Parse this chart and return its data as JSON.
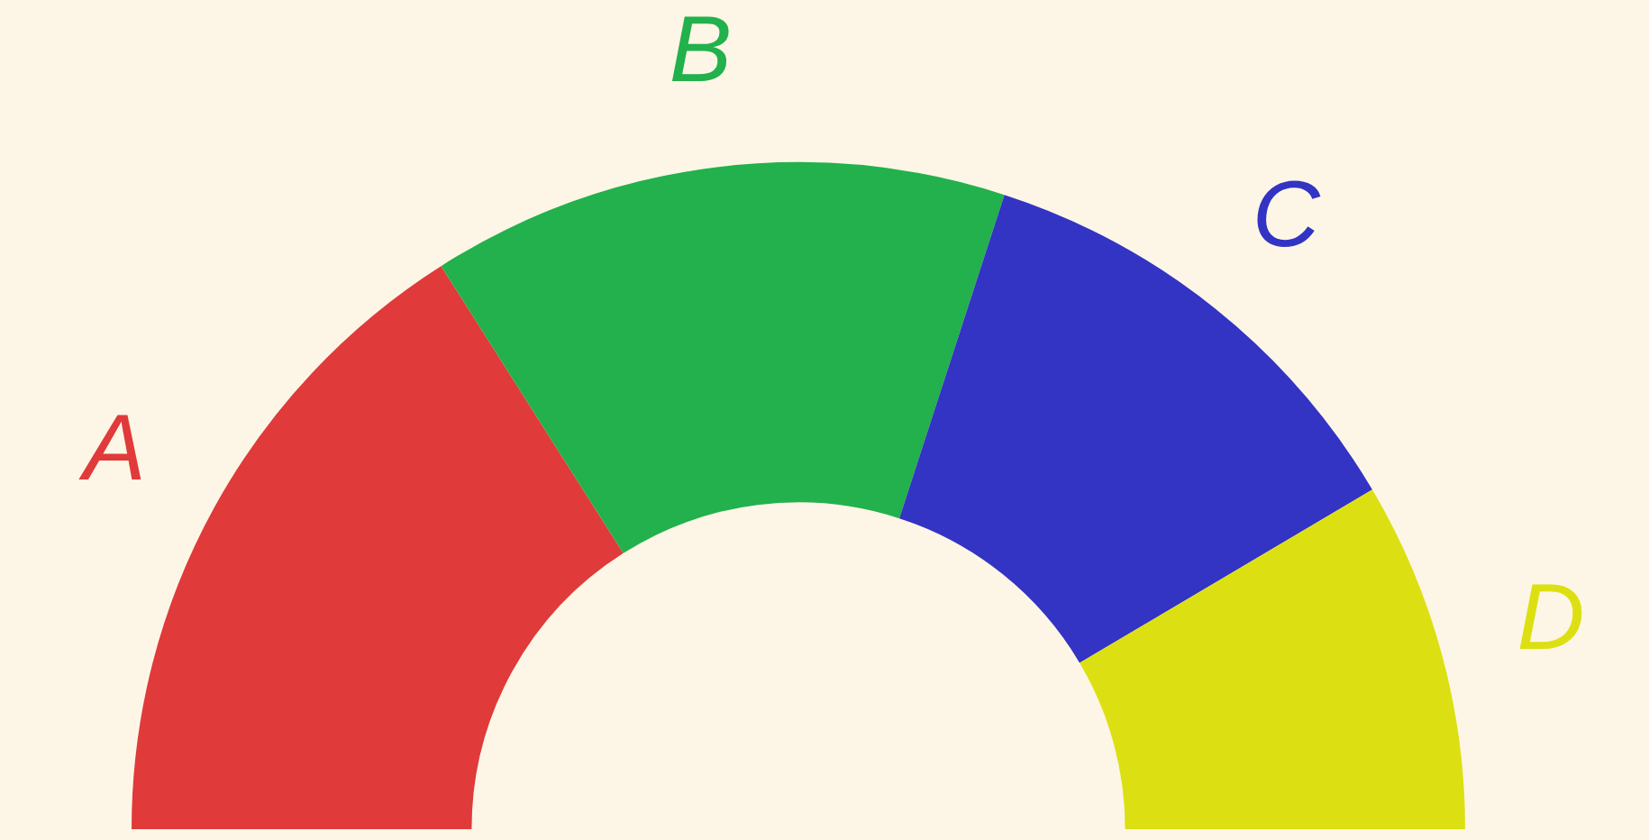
{
  "chart_data": {
    "type": "donut",
    "categories": [
      "A",
      "B",
      "C",
      "D"
    ],
    "values": [
      32,
      28,
      23,
      17
    ],
    "colors": [
      "#e03a3a",
      "#22b14c",
      "#3333c4",
      "#dce012"
    ]
  }
}
